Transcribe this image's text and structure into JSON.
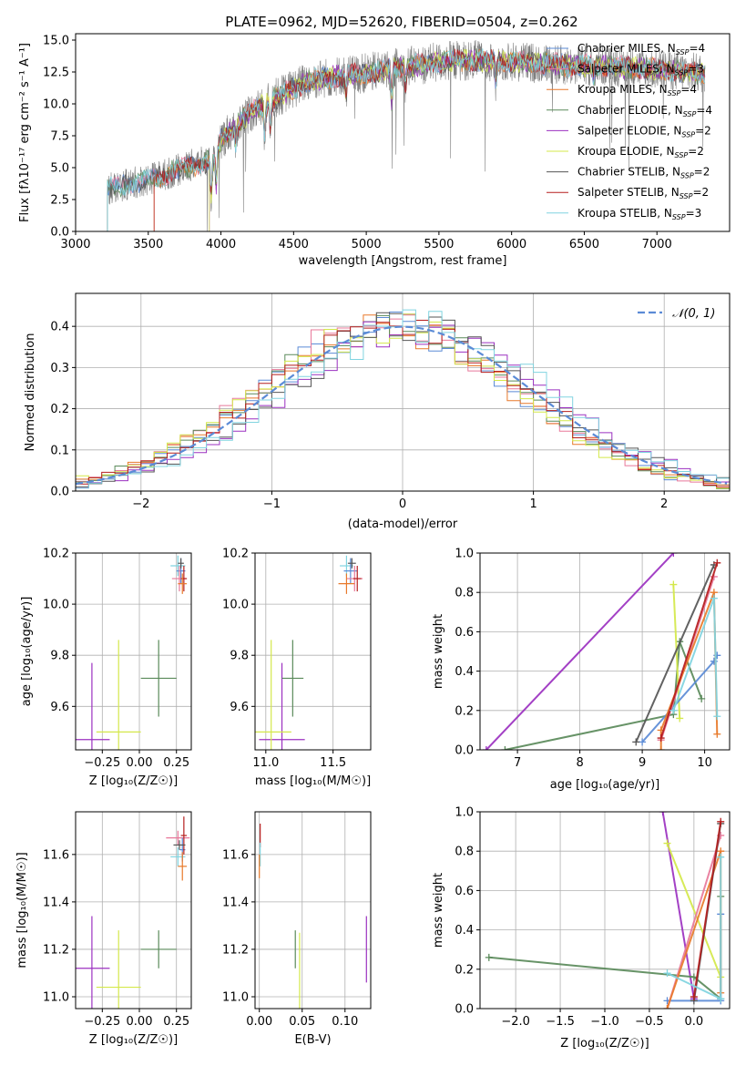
{
  "figure": {
    "title": "PLATE=0962, MJD=52620, FIBERID=0504, z=0.262"
  },
  "series": [
    {
      "name": "Chabrier MILES",
      "nssp": "4",
      "color": "#5b8bd6"
    },
    {
      "name": "Salpeter MILES",
      "nssp": "3",
      "color": "#e8789a"
    },
    {
      "name": "Kroupa MILES",
      "nssp": "4",
      "color": "#e8792a"
    },
    {
      "name": "Chabrier ELODIE",
      "nssp": "4",
      "color": "#5a8a5a"
    },
    {
      "name": "Salpeter ELODIE",
      "nssp": "2",
      "color": "#9b30c0"
    },
    {
      "name": "Kroupa ELODIE",
      "nssp": "2",
      "color": "#d4e84a"
    },
    {
      "name": "Chabrier STELIB",
      "nssp": "2",
      "color": "#555555"
    },
    {
      "name": "Salpeter STELIB",
      "nssp": "2",
      "color": "#b51e1e"
    },
    {
      "name": "Kroupa STELIB",
      "nssp": "3",
      "color": "#80d4e0"
    }
  ],
  "chart_data": [
    {
      "id": "spectrum",
      "type": "line",
      "xlabel": "wavelength [Angstrom, rest frame]",
      "ylabel": "Flux [fλ10⁻¹⁷ erg cm⁻² s⁻¹ A⁻¹]",
      "xlim": [
        3000,
        7500
      ],
      "ylim": [
        0,
        15.5
      ],
      "xticks": [
        3000,
        3500,
        4000,
        4500,
        5000,
        5500,
        6000,
        6500,
        7000
      ],
      "yticks": [
        0.0,
        2.5,
        5.0,
        7.5,
        10.0,
        12.5,
        15.0
      ],
      "data_start": 3220,
      "data_end": 7330,
      "continuum": [
        [
          3220,
          3.3
        ],
        [
          3400,
          3.8
        ],
        [
          3600,
          4.4
        ],
        [
          3800,
          5.2
        ],
        [
          3950,
          5.6
        ],
        [
          4000,
          7.2
        ],
        [
          4200,
          9.3
        ],
        [
          4400,
          10.6
        ],
        [
          4600,
          11.8
        ],
        [
          4800,
          12.2
        ],
        [
          5000,
          12.4
        ],
        [
          5200,
          12.8
        ],
        [
          5400,
          13.1
        ],
        [
          5600,
          13.4
        ],
        [
          5800,
          13.4
        ],
        [
          6000,
          13.3
        ],
        [
          6200,
          13.2
        ],
        [
          6400,
          13.0
        ],
        [
          6600,
          13.0
        ],
        [
          6800,
          12.9
        ],
        [
          7000,
          12.7
        ],
        [
          7200,
          12.5
        ],
        [
          7330,
          12.4
        ]
      ],
      "features": [
        [
          3933,
          -2.8
        ],
        [
          3968,
          -2.6
        ],
        [
          4102,
          -1.5
        ],
        [
          4300,
          -2.2
        ],
        [
          4340,
          -1.8
        ],
        [
          4861,
          -1.4
        ],
        [
          5175,
          -2.5
        ],
        [
          5270,
          -1.3
        ],
        [
          5890,
          -1.8
        ],
        [
          6563,
          -1.0
        ]
      ]
    },
    {
      "id": "residuals",
      "type": "histogram",
      "xlabel": "(data-model)/error",
      "ylabel": "Normed distribution",
      "xlim": [
        -2.5,
        2.5
      ],
      "ylim": [
        0,
        0.48
      ],
      "xticks": [
        -2,
        -1,
        0,
        1,
        2
      ],
      "yticks": [
        0.0,
        0.1,
        0.2,
        0.3,
        0.4
      ],
      "legend": "𝒩(0, 1)",
      "reference": {
        "mean": 0,
        "sigma": 1,
        "color": "#5b8bd6"
      }
    },
    {
      "id": "age-vs-Z",
      "type": "errorbar",
      "xlabel": "Z [log₁₀(Z/Z☉)]",
      "ylabel": "age  [log₁₀(age/yr)]",
      "xlim": [
        -0.43,
        0.35
      ],
      "ylim": [
        9.43,
        10.2
      ],
      "xticks": [
        -0.25,
        0.0,
        0.25
      ],
      "yticks": [
        9.6,
        9.8,
        10.0,
        10.2
      ],
      "points": [
        {
          "series": 4,
          "x": -0.32,
          "y": 9.47,
          "xerr": 0.12,
          "yerr": 0.3
        },
        {
          "series": 5,
          "x": -0.14,
          "y": 9.5,
          "xerr": 0.15,
          "yerr": 0.36
        },
        {
          "series": 3,
          "x": 0.13,
          "y": 9.71,
          "xerr": 0.12,
          "yerr": 0.15
        },
        {
          "series": 8,
          "x": 0.26,
          "y": 10.15,
          "xerr": 0.05,
          "yerr": 0.04
        },
        {
          "series": 0,
          "x": 0.28,
          "y": 10.13,
          "xerr": 0.03,
          "yerr": 0.05
        },
        {
          "series": 1,
          "x": 0.27,
          "y": 10.1,
          "xerr": 0.05,
          "yerr": 0.05
        },
        {
          "series": 7,
          "x": 0.3,
          "y": 10.1,
          "xerr": 0.02,
          "yerr": 0.05
        },
        {
          "series": 2,
          "x": 0.29,
          "y": 10.08,
          "xerr": 0.03,
          "yerr": 0.04
        },
        {
          "series": 6,
          "x": 0.28,
          "y": 10.16,
          "xerr": 0.02,
          "yerr": 0.02
        }
      ]
    },
    {
      "id": "age-vs-mass",
      "type": "errorbar",
      "xlabel": "mass [log₁₀(M/M☉)]",
      "ylabel": "",
      "xlim": [
        10.92,
        11.78
      ],
      "ylim": [
        9.43,
        10.2
      ],
      "xticks": [
        11.0,
        11.5
      ],
      "yticks": [
        9.6,
        9.8,
        10.0,
        10.2
      ],
      "points": [
        {
          "series": 4,
          "x": 11.12,
          "y": 9.47,
          "xerr": 0.17,
          "yerr": 0.3
        },
        {
          "series": 5,
          "x": 11.04,
          "y": 9.5,
          "xerr": 0.15,
          "yerr": 0.36
        },
        {
          "series": 3,
          "x": 11.2,
          "y": 9.71,
          "xerr": 0.08,
          "yerr": 0.15
        },
        {
          "series": 8,
          "x": 11.6,
          "y": 10.15,
          "xerr": 0.05,
          "yerr": 0.04
        },
        {
          "series": 0,
          "x": 11.63,
          "y": 10.13,
          "xerr": 0.05,
          "yerr": 0.05
        },
        {
          "series": 1,
          "x": 11.66,
          "y": 10.1,
          "xerr": 0.06,
          "yerr": 0.05
        },
        {
          "series": 7,
          "x": 11.68,
          "y": 10.1,
          "xerr": 0.03,
          "yerr": 0.05
        },
        {
          "series": 2,
          "x": 11.6,
          "y": 10.08,
          "xerr": 0.06,
          "yerr": 0.04
        },
        {
          "series": 6,
          "x": 11.64,
          "y": 10.16,
          "xerr": 0.03,
          "yerr": 0.02
        }
      ]
    },
    {
      "id": "mass-weight-vs-age",
      "type": "line",
      "xlabel": "age  [log₁₀(age/yr)]",
      "ylabel": "mass weight",
      "xlim": [
        6.4,
        10.4
      ],
      "ylim": [
        0,
        1
      ],
      "xticks": [
        7,
        8,
        9,
        10
      ],
      "yticks": [
        0.0,
        0.2,
        0.4,
        0.6,
        0.8,
        1.0
      ],
      "series_points": [
        {
          "series": 4,
          "points": [
            [
              6.5,
              0.0
            ],
            [
              9.5,
              1.0
            ]
          ]
        },
        {
          "series": 3,
          "points": [
            [
              6.8,
              0.0
            ],
            [
              9.5,
              0.18
            ],
            [
              9.6,
              0.55
            ],
            [
              9.95,
              0.26
            ]
          ]
        },
        {
          "series": 5,
          "points": [
            [
              9.5,
              0.84
            ],
            [
              9.6,
              0.16
            ]
          ]
        },
        {
          "series": 0,
          "points": [
            [
              9.0,
              0.04
            ],
            [
              10.15,
              0.45
            ],
            [
              10.2,
              0.48
            ]
          ]
        },
        {
          "series": 1,
          "points": [
            [
              9.3,
              0.05
            ],
            [
              10.15,
              0.88
            ]
          ]
        },
        {
          "series": 2,
          "points": [
            [
              9.3,
              0.0
            ],
            [
              9.3,
              0.1
            ],
            [
              10.15,
              0.8
            ],
            [
              10.2,
              0.08
            ]
          ]
        },
        {
          "series": 6,
          "points": [
            [
              8.9,
              0.04
            ],
            [
              10.15,
              0.94
            ]
          ]
        },
        {
          "series": 7,
          "points": [
            [
              9.3,
              0.06
            ],
            [
              10.2,
              0.95
            ]
          ]
        },
        {
          "series": 8,
          "points": [
            [
              9.5,
              0.2
            ],
            [
              10.15,
              0.77
            ],
            [
              10.2,
              0.17
            ]
          ]
        }
      ]
    },
    {
      "id": "mass-vs-Z",
      "type": "errorbar",
      "xlabel": "Z [log₁₀(Z/Z☉)]",
      "ylabel": "mass [log₁₀(M/M☉)]",
      "xlim": [
        -0.43,
        0.35
      ],
      "ylim": [
        10.95,
        11.78
      ],
      "xticks": [
        -0.25,
        0.0,
        0.25
      ],
      "yticks": [
        11.0,
        11.2,
        11.4,
        11.6
      ],
      "points": [
        {
          "series": 4,
          "x": -0.32,
          "y": 11.12,
          "xerr": 0.12,
          "yerr": 0.22
        },
        {
          "series": 5,
          "x": -0.14,
          "y": 11.04,
          "xerr": 0.15,
          "yerr": 0.24
        },
        {
          "series": 3,
          "x": 0.13,
          "y": 11.2,
          "xerr": 0.12,
          "yerr": 0.08
        },
        {
          "series": 1,
          "x": 0.26,
          "y": 11.67,
          "xerr": 0.08,
          "yerr": 0.03
        },
        {
          "series": 8,
          "x": 0.26,
          "y": 11.59,
          "xerr": 0.05,
          "yerr": 0.04
        },
        {
          "series": 0,
          "x": 0.29,
          "y": 11.62,
          "xerr": 0.02,
          "yerr": 0.05
        },
        {
          "series": 7,
          "x": 0.3,
          "y": 11.68,
          "xerr": 0.02,
          "yerr": 0.08
        },
        {
          "series": 2,
          "x": 0.29,
          "y": 11.55,
          "xerr": 0.03,
          "yerr": 0.06
        },
        {
          "series": 6,
          "x": 0.27,
          "y": 11.64,
          "xerr": 0.04,
          "yerr": 0.02
        }
      ]
    },
    {
      "id": "mass-vs-ebv",
      "type": "errorbar",
      "xlabel": "E(B-V)",
      "ylabel": "",
      "xlim": [
        -0.005,
        0.13
      ],
      "ylim": [
        10.95,
        11.78
      ],
      "xticks": [
        0.0,
        0.05,
        0.1
      ],
      "yticks": [
        11.0,
        11.2,
        11.4,
        11.6
      ],
      "points": [
        {
          "series": 4,
          "x": 0.125,
          "y": 11.2,
          "xerr": 0,
          "yerr": 0.14
        },
        {
          "series": 5,
          "x": 0.047,
          "y": 11.1,
          "xerr": 0,
          "yerr": 0.17
        },
        {
          "series": 3,
          "x": 0.042,
          "y": 11.2,
          "xerr": 0,
          "yerr": 0.08
        },
        {
          "series": 7,
          "x": 0.001,
          "y": 11.68,
          "xerr": 0,
          "yerr": 0.05
        },
        {
          "series": 8,
          "x": 0.001,
          "y": 11.6,
          "xerr": 0,
          "yerr": 0.05
        },
        {
          "series": 2,
          "x": 0.0,
          "y": 11.55,
          "xerr": 0,
          "yerr": 0.05
        }
      ]
    },
    {
      "id": "mass-weight-vs-Z",
      "type": "line",
      "xlabel": "Z [log₁₀(Z/Z☉)]",
      "ylabel": "mass weight",
      "xlim": [
        -2.4,
        0.4
      ],
      "ylim": [
        0,
        1
      ],
      "xticks": [
        -2.0,
        -1.5,
        -1.0,
        -0.5,
        0.0
      ],
      "yticks": [
        0.0,
        0.2,
        0.4,
        0.6,
        0.8,
        1.0
      ],
      "series_points": [
        {
          "series": 4,
          "points": [
            [
              -0.35,
              1.0
            ],
            [
              0.0,
              0.05
            ]
          ]
        },
        {
          "series": 3,
          "points": [
            [
              -2.3,
              0.26
            ],
            [
              0.0,
              0.16
            ],
            [
              0.3,
              0.05
            ],
            [
              0.3,
              0.57
            ]
          ]
        },
        {
          "series": 5,
          "points": [
            [
              -0.3,
              0.84
            ],
            [
              0.3,
              0.16
            ]
          ]
        },
        {
          "series": 0,
          "points": [
            [
              -0.3,
              0.04
            ],
            [
              0.3,
              0.04
            ],
            [
              0.3,
              0.48
            ]
          ]
        },
        {
          "series": 1,
          "points": [
            [
              -0.3,
              0.0
            ],
            [
              0.3,
              0.88
            ]
          ]
        },
        {
          "series": 2,
          "points": [
            [
              -0.3,
              0.0
            ],
            [
              0.3,
              0.8
            ],
            [
              0.3,
              0.08
            ]
          ]
        },
        {
          "series": 6,
          "points": [
            [
              0.0,
              0.04
            ],
            [
              0.3,
              0.94
            ]
          ]
        },
        {
          "series": 7,
          "points": [
            [
              0.0,
              0.06
            ],
            [
              0.3,
              0.95
            ]
          ]
        },
        {
          "series": 8,
          "points": [
            [
              -0.3,
              0.18
            ],
            [
              0.3,
              0.05
            ],
            [
              0.3,
              0.77
            ]
          ]
        }
      ]
    }
  ]
}
